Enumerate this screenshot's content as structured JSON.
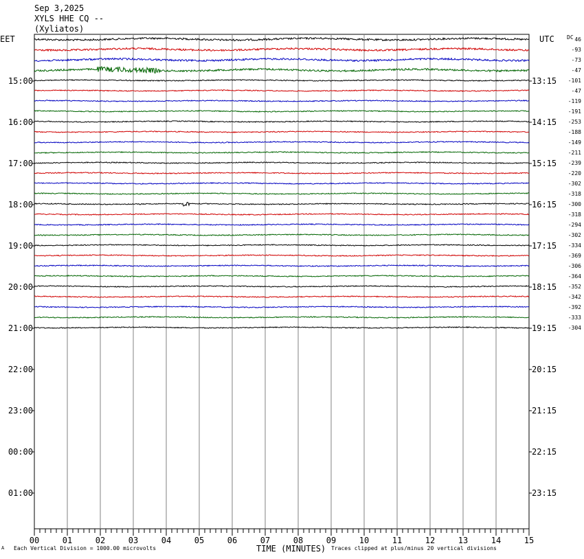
{
  "header": {
    "date": "Sep 3,2025",
    "station": "XYLS HHE CQ --",
    "site": "(Xyliatos)"
  },
  "labels": {
    "left_zone": "EET",
    "right_zone": "UTC",
    "dc_label": "DC",
    "x_title": "TIME (MINUTES)",
    "footer_left": "Each Vertical Division = 1000.00 microvolts",
    "footer_right": "Traces clipped at plus/minus 20 vertical divisions",
    "corner_mark": "A"
  },
  "colors": {
    "trace_cycle": [
      "#000000",
      "#d00000",
      "#0000c0",
      "#006400"
    ],
    "grid": "#808080"
  },
  "chart_data": {
    "type": "line",
    "title": "XYLS HHE CQ --",
    "xlabel": "TIME (MINUTES)",
    "xlim": [
      0,
      15
    ],
    "x_ticks": [
      "00",
      "01",
      "02",
      "03",
      "04",
      "05",
      "06",
      "07",
      "08",
      "09",
      "10",
      "11",
      "12",
      "13",
      "14",
      "15"
    ],
    "hour_labels_left": [
      "15:00",
      "16:00",
      "17:00",
      "18:00",
      "19:00",
      "20:00",
      "21:00",
      "22:00",
      "23:00",
      "00:00",
      "01:00"
    ],
    "hour_labels_right": [
      "13:15",
      "14:15",
      "15:15",
      "16:15",
      "17:15",
      "18:15",
      "19:15",
      "20:15",
      "21:15",
      "22:15",
      "23:15"
    ],
    "dc_offsets": [
      "46",
      "-93",
      "-73",
      "-47",
      "-101",
      "-47",
      "-119",
      "-191",
      "-253",
      "-188",
      "-149",
      "-211",
      "-239",
      "-220",
      "-302",
      "-318",
      "-300",
      "-318",
      "-294",
      "-302",
      "-334",
      "-369",
      "-306",
      "-364",
      "-352",
      "-342",
      "-392",
      "-333",
      "-304"
    ],
    "trace_count": 29,
    "events": [
      {
        "trace": 3,
        "start_min": 1.9,
        "end_min": 3.8,
        "note": "burst"
      },
      {
        "trace": 16,
        "start_min": 4.5,
        "end_min": 4.7,
        "note": "spike"
      }
    ]
  }
}
